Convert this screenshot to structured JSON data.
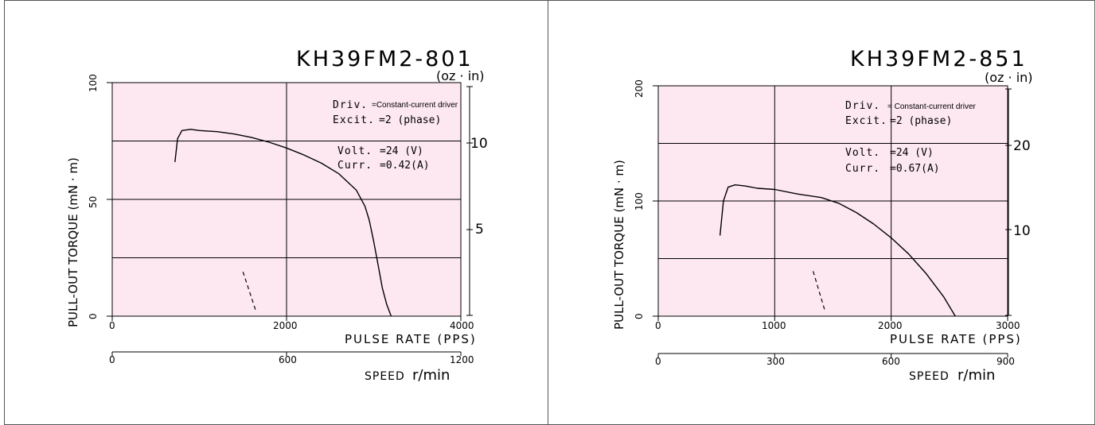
{
  "colors": {
    "plot_bg": "#fde8f1",
    "line": "#000000",
    "panel_border": "#555555"
  },
  "chart_data": [
    {
      "type": "line",
      "title": "KH39FM2-801",
      "ylabel": "PULL-OUT  TORQUE (mN · m)",
      "ylabel_right": "(oz · in)",
      "xlabel": "PULSE RATE  (PPS)",
      "xlabel2": "SPEED",
      "xlabel2_unit": "r/min",
      "x_ticks": [
        "0",
        "2000",
        "4000"
      ],
      "x2_ticks": [
        "0",
        "600",
        "1200"
      ],
      "y_ticks": [
        "0",
        "50",
        "100"
      ],
      "y_right_ticks": [
        "5",
        "10"
      ],
      "xlim": [
        0,
        4000
      ],
      "x2lim": [
        0,
        1200
      ],
      "ylim": [
        0,
        100
      ],
      "grid": true,
      "info": {
        "driv_label": "Driv.",
        "driv_value": "=Constant-current driver",
        "excit_label": "Excit.",
        "excit_value": "=2  (phase)",
        "volt_label": "Volt.",
        "volt_value": "=24 (V)",
        "curr_label": "Curr.",
        "curr_value": "=0.42(A)"
      },
      "series": [
        {
          "x": [
            720,
            750,
            800,
            900,
            1000,
            1200,
            1400,
            1600,
            1800,
            2000,
            2200,
            2400,
            2600,
            2800,
            2900,
            2950,
            3000,
            3050,
            3100,
            3150,
            3200
          ],
          "y": [
            66,
            76,
            79.5,
            80,
            79.5,
            79,
            78,
            76.5,
            74.5,
            72,
            69,
            65.5,
            61,
            54,
            47,
            41,
            32,
            22,
            12,
            5,
            0
          ]
        }
      ],
      "dash_segment": {
        "x": [
          1500,
          1650
        ],
        "y": [
          19,
          2
        ]
      }
    },
    {
      "type": "line",
      "title": "KH39FM2-851",
      "ylabel": "PULL-OUT  TORQUE (mN · m)",
      "ylabel_right": "(oz · in)",
      "xlabel": "PULSE RATE  (PPS)",
      "xlabel2": "SPEED",
      "xlabel2_unit": "r/min",
      "x_ticks": [
        "0",
        "1000",
        "2000",
        "3000"
      ],
      "x2_ticks": [
        "0",
        "300",
        "600",
        "900"
      ],
      "y_ticks": [
        "0",
        "100",
        "200"
      ],
      "y_right_ticks": [
        "10",
        "20"
      ],
      "xlim": [
        0,
        3000
      ],
      "x2lim": [
        0,
        900
      ],
      "ylim": [
        0,
        200
      ],
      "grid": true,
      "info": {
        "driv_label": "Driv.",
        "driv_value": "= Constant-current driver",
        "excit_label": "Excit.",
        "excit_value": "=2  (phase)",
        "volt_label": "Volt.",
        "volt_value": "=24 (V)",
        "curr_label": "Curr.",
        "curr_value": "=0.67(A)"
      },
      "series": [
        {
          "x": [
            530,
            560,
            600,
            660,
            750,
            850,
            1000,
            1200,
            1400,
            1550,
            1700,
            1850,
            2000,
            2150,
            2300,
            2450,
            2550
          ],
          "y": [
            70,
            100,
            112,
            114,
            113,
            111,
            110,
            106,
            103,
            98,
            90,
            80,
            68,
            54,
            37,
            17,
            0
          ]
        }
      ],
      "dash_segment": {
        "x": [
          1330,
          1430
        ],
        "y": [
          39,
          5
        ]
      }
    }
  ]
}
